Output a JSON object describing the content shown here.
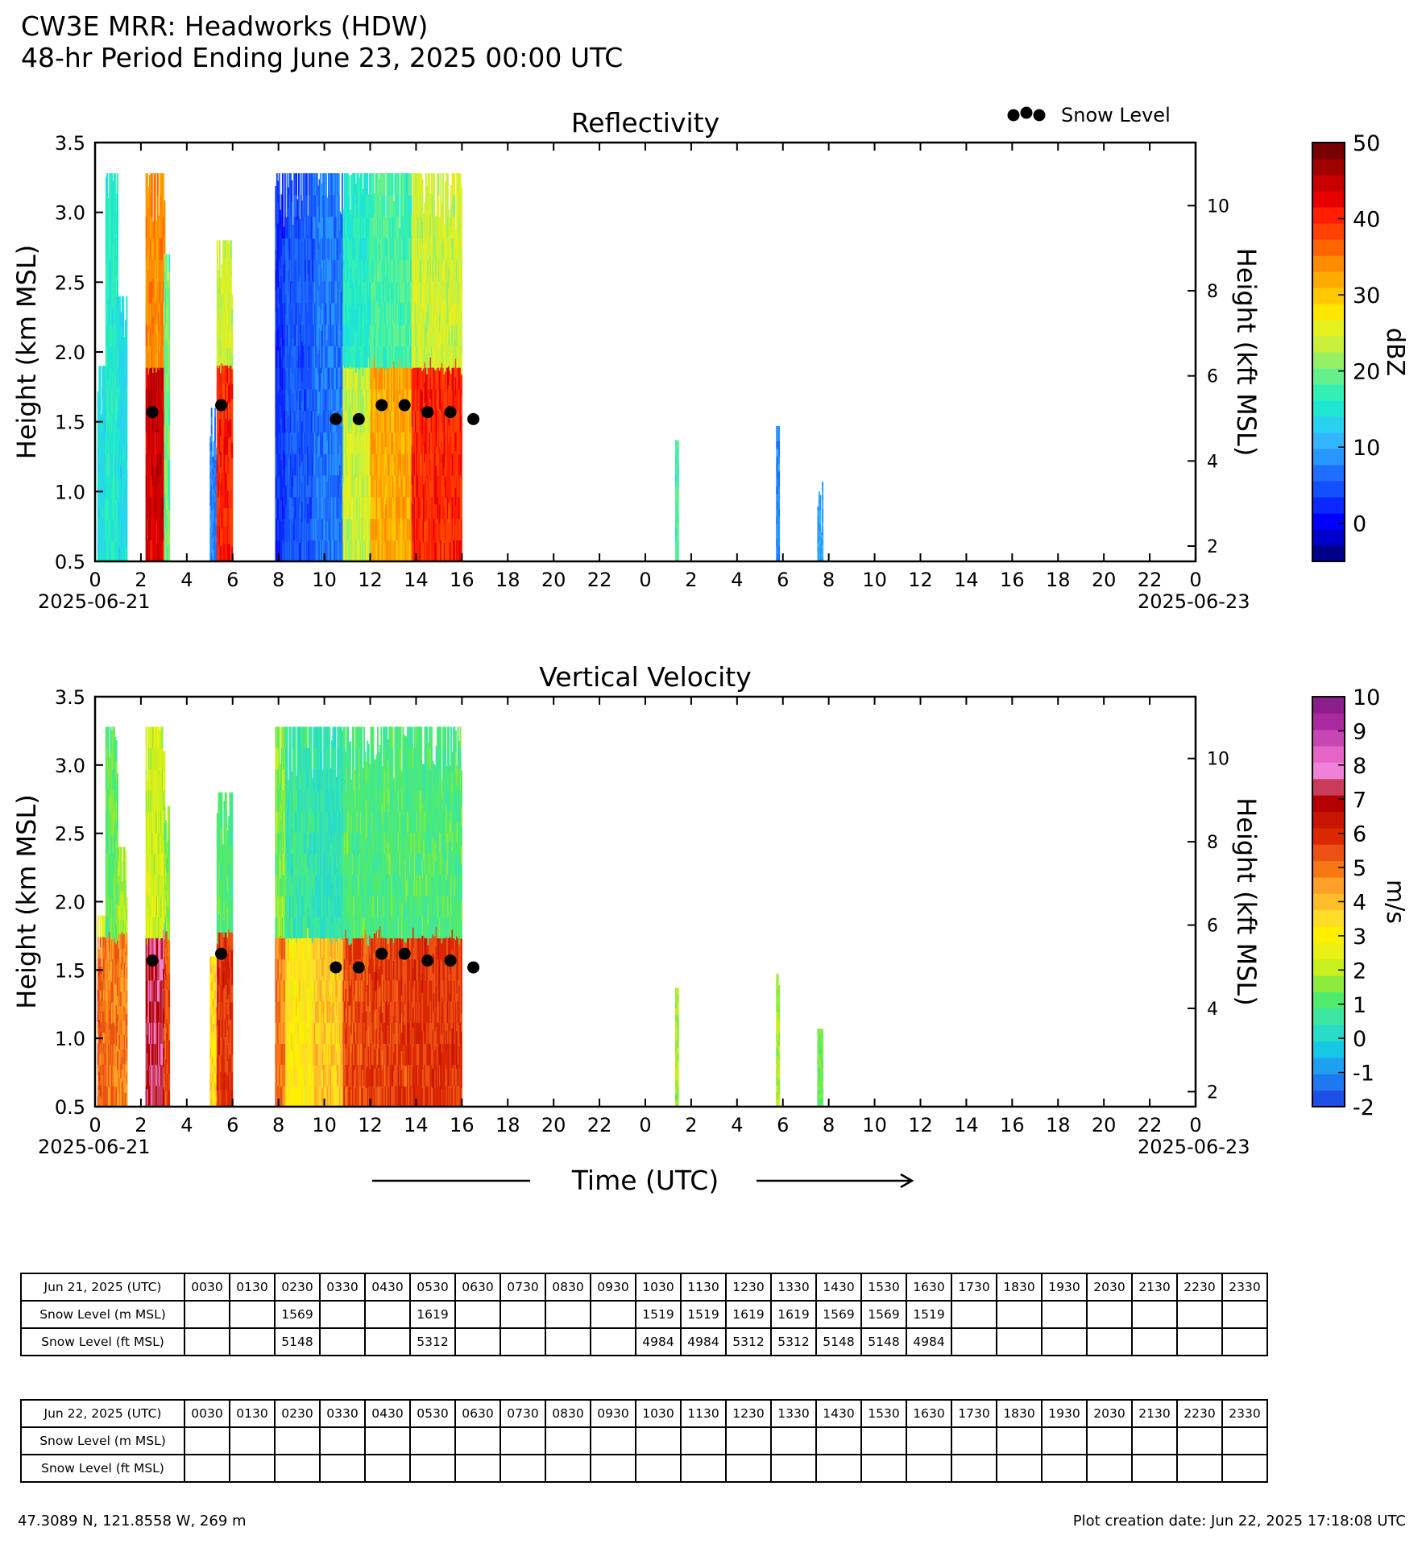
{
  "header": {
    "title": "CW3E MRR: Headworks (HDW)",
    "subtitle": "48-hr Period Ending June 23, 2025 00:00 UTC"
  },
  "legend": {
    "snow_level_label": "Snow Level"
  },
  "xaxis": {
    "tick_labels": [
      "0",
      "2",
      "4",
      "6",
      "8",
      "10",
      "12",
      "14",
      "16",
      "18",
      "20",
      "22",
      "0",
      "2",
      "4",
      "6",
      "8",
      "10",
      "12",
      "14",
      "16",
      "18",
      "20",
      "22",
      "0"
    ],
    "start_date": "2025-06-21",
    "end_date": "2025-06-23",
    "title": "Time (UTC)"
  },
  "chart_data": [
    {
      "type": "heatmap",
      "title": "Reflectivity",
      "ylabel": "Height (km MSL)",
      "ylabel_right": "Height (kft MSL)",
      "xlim_hours": [
        0,
        48
      ],
      "ylim": [
        0.5,
        3.5
      ],
      "yticks": [
        "0.5",
        "1.0",
        "1.5",
        "2.0",
        "2.5",
        "3.0",
        "3.5"
      ],
      "yticks_right": [
        "2",
        "4",
        "6",
        "8",
        "10"
      ],
      "colorbar": {
        "label": "dBZ",
        "min": -5,
        "max": 50,
        "ticks": [
          "0",
          "10",
          "20",
          "30",
          "40",
          "50"
        ],
        "tick_values": [
          0,
          10,
          20,
          30,
          40,
          50
        ],
        "colors": [
          "#00008b",
          "#0000cd",
          "#0000ff",
          "#0a28ff",
          "#1450ff",
          "#1e6eff",
          "#2896ff",
          "#32b4ff",
          "#28d2f0",
          "#1ee6d2",
          "#32f0b4",
          "#64f08c",
          "#96f064",
          "#c8f03c",
          "#e6f01e",
          "#ffe600",
          "#ffc800",
          "#ffaa00",
          "#ff8c00",
          "#ff6400",
          "#ff4100",
          "#ff1e00",
          "#e60000",
          "#c80000",
          "#a00000",
          "#780000"
        ]
      },
      "snow_level_points": [
        {
          "x": 2.5,
          "y": 1.569
        },
        {
          "x": 5.5,
          "y": 1.619
        },
        {
          "x": 10.5,
          "y": 1.519
        },
        {
          "x": 11.5,
          "y": 1.519
        },
        {
          "x": 12.5,
          "y": 1.619
        },
        {
          "x": 13.5,
          "y": 1.619
        },
        {
          "x": 14.5,
          "y": 1.569
        },
        {
          "x": 15.5,
          "y": 1.569
        },
        {
          "x": 16.5,
          "y": 1.519
        }
      ],
      "echo_segments": [
        {
          "x0": 0.1,
          "x1": 0.5,
          "ytop": 1.9,
          "v": 14
        },
        {
          "x0": 0.45,
          "x1": 1.0,
          "ytop": 3.28,
          "v": 16
        },
        {
          "x0": 1.0,
          "x1": 1.4,
          "ytop": 2.4,
          "v": 14
        },
        {
          "x0": 2.2,
          "x1": 3.05,
          "ytop": 3.28,
          "v": 34,
          "core": 44
        },
        {
          "x0": 3.0,
          "x1": 3.25,
          "ytop": 2.7,
          "v": 20
        },
        {
          "x0": 5.0,
          "x1": 5.3,
          "ytop": 1.6,
          "v": 8
        },
        {
          "x0": 5.3,
          "x1": 6.0,
          "ytop": 2.8,
          "v": 24,
          "core": 40
        },
        {
          "x0": 7.85,
          "x1": 8.3,
          "ytop": 3.28,
          "v": 3
        },
        {
          "x0": 8.3,
          "x1": 9.5,
          "ytop": 3.28,
          "v": 5
        },
        {
          "x0": 9.5,
          "x1": 10.8,
          "ytop": 3.28,
          "v": 7
        },
        {
          "x0": 10.8,
          "x1": 12.0,
          "ytop": 3.28,
          "v": 16,
          "core": 24
        },
        {
          "x0": 12.0,
          "x1": 13.8,
          "ytop": 3.28,
          "v": 18,
          "core": 32
        },
        {
          "x0": 13.8,
          "x1": 16.0,
          "ytop": 3.28,
          "v": 24,
          "core": 40
        },
        {
          "x0": 25.3,
          "x1": 25.45,
          "ytop": 1.37,
          "v": 18
        },
        {
          "x0": 29.7,
          "x1": 29.85,
          "ytop": 1.47,
          "v": 8
        },
        {
          "x0": 31.5,
          "x1": 31.75,
          "ytop": 1.07,
          "v": 10
        }
      ]
    },
    {
      "type": "heatmap",
      "title": "Vertical Velocity",
      "ylabel": "Height (km MSL)",
      "ylabel_right": "Height (kft MSL)",
      "xlim_hours": [
        0,
        48
      ],
      "ylim": [
        0.5,
        3.5
      ],
      "yticks": [
        "0.5",
        "1.0",
        "1.5",
        "2.0",
        "2.5",
        "3.0",
        "3.5"
      ],
      "yticks_right": [
        "2",
        "4",
        "6",
        "8",
        "10"
      ],
      "colorbar": {
        "label": "m/s",
        "min": -2,
        "max": 10,
        "ticks": [
          "-2",
          "-1",
          "0",
          "1",
          "2",
          "3",
          "4",
          "5",
          "6",
          "7",
          "8",
          "9",
          "10"
        ],
        "tick_values": [
          -2,
          -1,
          0,
          1,
          2,
          3,
          4,
          5,
          6,
          7,
          8,
          9,
          10
        ],
        "colors": [
          "#1e50e6",
          "#1e78f0",
          "#1ea0f0",
          "#14c8e6",
          "#28dcc8",
          "#3ce6a0",
          "#50eb6e",
          "#8ceb3c",
          "#c8f01e",
          "#ebf014",
          "#fff000",
          "#ffdc28",
          "#ffbe28",
          "#ffa028",
          "#f57814",
          "#eb5014",
          "#dc2800",
          "#c81400",
          "#b40000",
          "#c83c5a",
          "#ef82d8",
          "#e664c8",
          "#c846b4",
          "#aa28a0",
          "#8c1e8c"
        ]
      },
      "snow_level_points": [
        {
          "x": 2.5,
          "y": 1.569
        },
        {
          "x": 5.5,
          "y": 1.619
        },
        {
          "x": 10.5,
          "y": 1.519
        },
        {
          "x": 11.5,
          "y": 1.519
        },
        {
          "x": 12.5,
          "y": 1.619
        },
        {
          "x": 13.5,
          "y": 1.619
        },
        {
          "x": 14.5,
          "y": 1.569
        },
        {
          "x": 15.5,
          "y": 1.569
        },
        {
          "x": 16.5,
          "y": 1.519
        }
      ],
      "echo_segments": [
        {
          "x0": 0.1,
          "x1": 0.5,
          "ytop": 1.9,
          "v": 2.5,
          "low": 5.2
        },
        {
          "x0": 0.45,
          "x1": 1.0,
          "ytop": 3.28,
          "v": 1.2,
          "low": 5.0
        },
        {
          "x0": 1.0,
          "x1": 1.4,
          "ytop": 2.4,
          "v": 1.8,
          "low": 4.8
        },
        {
          "x0": 2.2,
          "x1": 3.05,
          "ytop": 3.28,
          "v": 2.2,
          "low": 7.3
        },
        {
          "x0": 3.0,
          "x1": 3.25,
          "ytop": 2.7,
          "v": 1.6,
          "low": 5.5
        },
        {
          "x0": 5.0,
          "x1": 5.3,
          "ytop": 1.6,
          "v": 2.8,
          "low": 3.5
        },
        {
          "x0": 5.3,
          "x1": 6.0,
          "ytop": 2.8,
          "v": 1.0,
          "low": 5.8
        },
        {
          "x0": 7.85,
          "x1": 8.3,
          "ytop": 3.28,
          "v": 1.5,
          "low": 5.0
        },
        {
          "x0": 8.3,
          "x1": 9.5,
          "ytop": 3.28,
          "v": 0.6,
          "low": 3.2
        },
        {
          "x0": 9.5,
          "x1": 10.8,
          "ytop": 3.28,
          "v": 0.4,
          "low": 3.8
        },
        {
          "x0": 10.8,
          "x1": 12.0,
          "ytop": 3.28,
          "v": 1.0,
          "low": 5.5
        },
        {
          "x0": 12.0,
          "x1": 13.8,
          "ytop": 3.28,
          "v": 1.0,
          "low": 5.7
        },
        {
          "x0": 13.8,
          "x1": 16.0,
          "ytop": 3.28,
          "v": 1.0,
          "low": 5.8
        },
        {
          "x0": 25.3,
          "x1": 25.45,
          "ytop": 1.37,
          "v": 1.8
        },
        {
          "x0": 29.7,
          "x1": 29.85,
          "ytop": 1.47,
          "v": 1.8
        },
        {
          "x0": 31.5,
          "x1": 31.75,
          "ytop": 1.07,
          "v": 1.3
        }
      ]
    }
  ],
  "tables": [
    {
      "date_label": "Jun 21, 2025 (UTC)",
      "times": [
        "0030",
        "0130",
        "0230",
        "0330",
        "0430",
        "0530",
        "0630",
        "0730",
        "0830",
        "0930",
        "1030",
        "1130",
        "1230",
        "1330",
        "1430",
        "1530",
        "1630",
        "1730",
        "1830",
        "1930",
        "2030",
        "2130",
        "2230",
        "2330"
      ],
      "rows": [
        {
          "label": "Snow Level (m MSL)",
          "values": [
            "",
            "",
            "1569",
            "",
            "",
            "1619",
            "",
            "",
            "",
            "",
            "1519",
            "1519",
            "1619",
            "1619",
            "1569",
            "1569",
            "1519",
            "",
            "",
            "",
            "",
            "",
            "",
            ""
          ]
        },
        {
          "label": "Snow Level (ft MSL)",
          "values": [
            "",
            "",
            "5148",
            "",
            "",
            "5312",
            "",
            "",
            "",
            "",
            "4984",
            "4984",
            "5312",
            "5312",
            "5148",
            "5148",
            "4984",
            "",
            "",
            "",
            "",
            "",
            "",
            ""
          ]
        }
      ]
    },
    {
      "date_label": "Jun 22, 2025 (UTC)",
      "times": [
        "0030",
        "0130",
        "0230",
        "0330",
        "0430",
        "0530",
        "0630",
        "0730",
        "0830",
        "0930",
        "1030",
        "1130",
        "1230",
        "1330",
        "1430",
        "1530",
        "1630",
        "1730",
        "1830",
        "1930",
        "2030",
        "2130",
        "2230",
        "2330"
      ],
      "rows": [
        {
          "label": "Snow Level (m MSL)",
          "values": [
            "",
            "",
            "",
            "",
            "",
            "",
            "",
            "",
            "",
            "",
            "",
            "",
            "",
            "",
            "",
            "",
            "",
            "",
            "",
            "",
            "",
            "",
            "",
            ""
          ]
        },
        {
          "label": "Snow Level (ft MSL)",
          "values": [
            "",
            "",
            "",
            "",
            "",
            "",
            "",
            "",
            "",
            "",
            "",
            "",
            "",
            "",
            "",
            "",
            "",
            "",
            "",
            "",
            "",
            "",
            "",
            ""
          ]
        }
      ]
    }
  ],
  "footer": {
    "location": "47.3089 N, 121.8558 W, 269 m",
    "created": "Plot creation date: Jun 22, 2025 17:18:08 UTC"
  }
}
